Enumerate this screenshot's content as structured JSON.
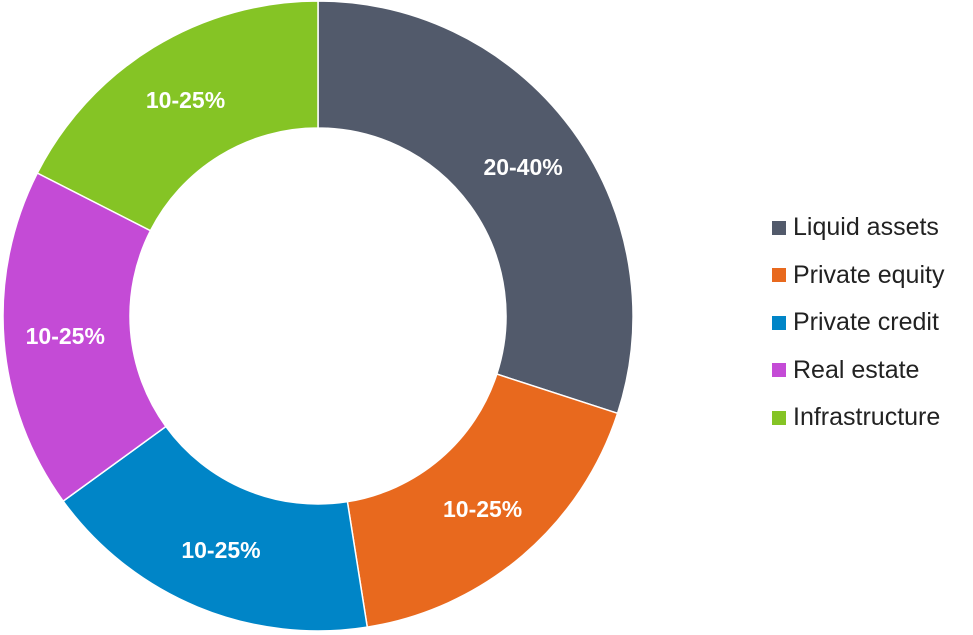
{
  "chart_data": {
    "type": "pie",
    "donut": true,
    "legend_position": "right",
    "categories": [
      "Liquid assets",
      "Private equity",
      "Private credit",
      "Real estate",
      "Infrastructure"
    ],
    "values": [
      30,
      17.5,
      17.5,
      17.5,
      17.5
    ],
    "labels": [
      "20-40%",
      "10-25%",
      "10-25%",
      "10-25%",
      "10-25%"
    ],
    "colors": [
      "#525a6b",
      "#e8691e",
      "#0085c7",
      "#c44bd6",
      "#85c425"
    ]
  }
}
